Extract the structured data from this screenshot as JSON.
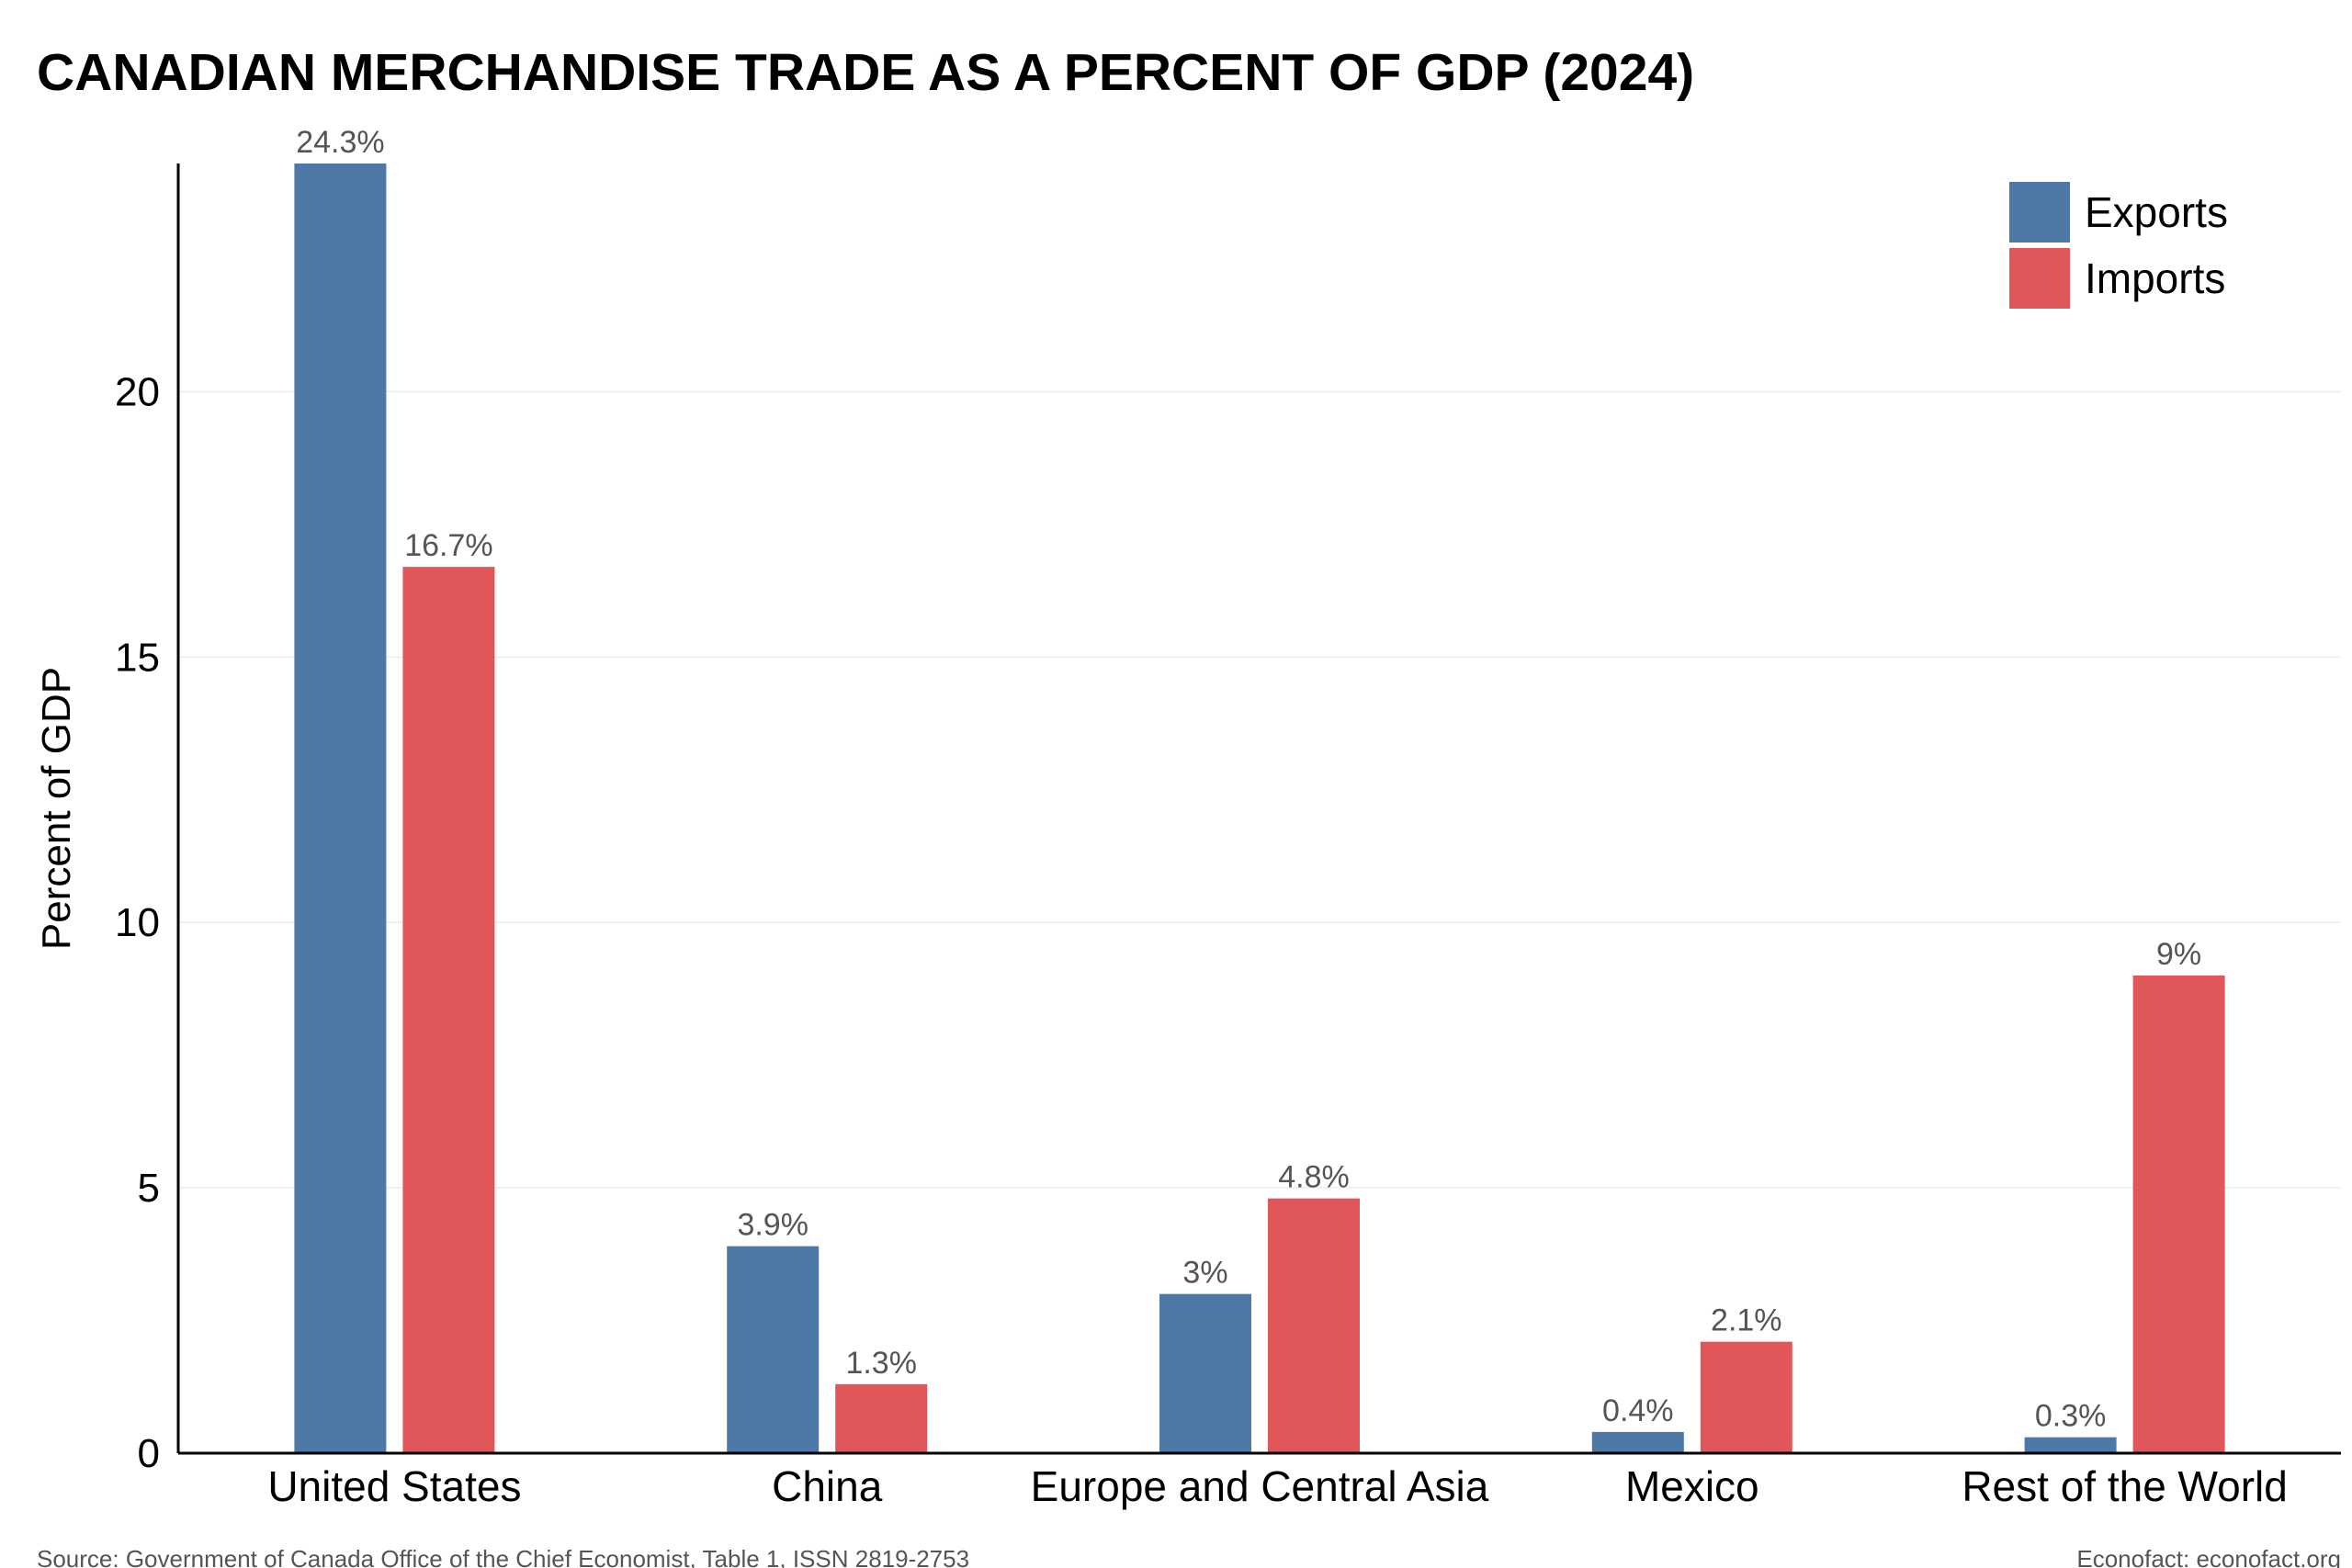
{
  "chart_data": {
    "type": "bar",
    "title": "CANADIAN MERCHANDISE TRADE AS A PERCENT OF GDP (2024)",
    "ylabel": "Percent of GDP",
    "xlabel": "",
    "ylim": [
      0,
      24.3
    ],
    "yticks": [
      0,
      5,
      10,
      15,
      20
    ],
    "grid": true,
    "legend_position": "top-right",
    "categories": [
      "United States",
      "China",
      "Europe and Central Asia",
      "Mexico",
      "Rest of the World"
    ],
    "series": [
      {
        "name": "Exports",
        "color": "#4e79a7",
        "values": [
          24.3,
          3.9,
          3,
          0.4,
          0.3
        ],
        "labels": [
          "24.3%",
          "3.9%",
          "3%",
          "0.4%",
          "0.3%"
        ]
      },
      {
        "name": "Imports",
        "color": "#e15759",
        "values": [
          16.7,
          1.3,
          4.8,
          2.1,
          9
        ],
        "labels": [
          "16.7%",
          "1.3%",
          "4.8%",
          "2.1%",
          "9%"
        ]
      }
    ]
  },
  "footer": {
    "source": "Source: Government of Canada Office of the Chief Economist, Table 1, ISSN 2819-2753",
    "credit": "Econofact: econofact.org"
  }
}
